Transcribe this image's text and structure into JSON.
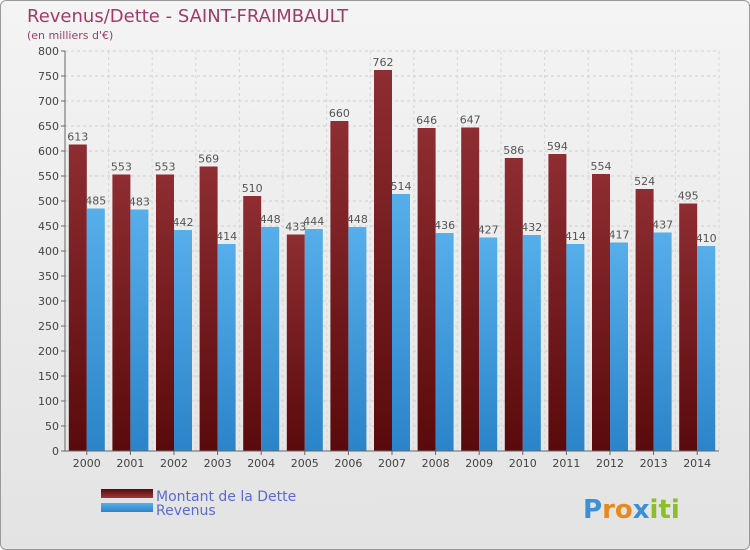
{
  "chart_data": {
    "type": "bar",
    "title": "Revenus/Dette - SAINT-FRAIMBAULT",
    "subtitle": "(en milliers d'€)",
    "categories": [
      "2000",
      "2001",
      "2002",
      "2003",
      "2004",
      "2005",
      "2006",
      "2007",
      "2008",
      "2009",
      "2010",
      "2011",
      "2012",
      "2013",
      "2014"
    ],
    "series": [
      {
        "name": "Montant de la Dette",
        "color": "#7a1c20",
        "values": [
          613,
          553,
          553,
          569,
          510,
          433,
          660,
          762,
          646,
          647,
          586,
          594,
          554,
          524,
          495
        ]
      },
      {
        "name": "Revenus",
        "color": "#3a9ae0",
        "values": [
          485,
          483,
          442,
          414,
          448,
          444,
          448,
          514,
          436,
          427,
          432,
          414,
          417,
          437,
          410
        ]
      }
    ],
    "ylim": [
      0,
      800
    ],
    "yticks": [
      0,
      50,
      100,
      150,
      200,
      250,
      300,
      350,
      400,
      450,
      500,
      550,
      600,
      650,
      700,
      750,
      800
    ],
    "grid": true,
    "legend": "bottom-left"
  },
  "logo": {
    "letters": [
      "P",
      "r",
      "o",
      "x",
      "i",
      "t",
      "i"
    ]
  }
}
